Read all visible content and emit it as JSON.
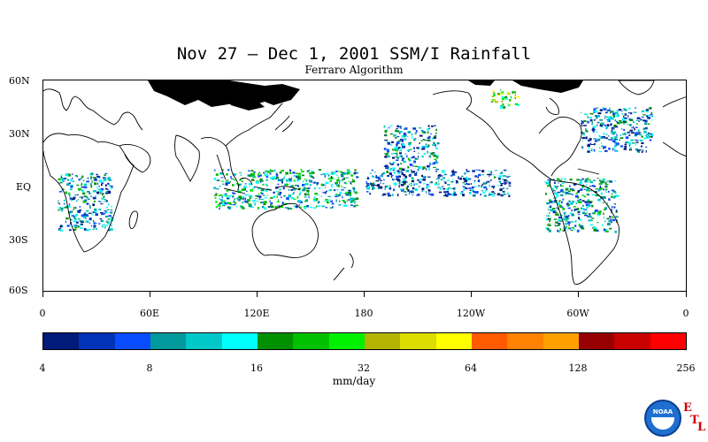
{
  "title": "Nov 27 – Dec 1, 2001 SSM/I Rainfall",
  "subtitle": "Ferraro Algorithm",
  "map": {
    "lat_labels": [
      "60N",
      "30N",
      "EQ",
      "30S",
      "60S"
    ],
    "lon_labels": [
      "0",
      "60E",
      "120E",
      "180",
      "120W",
      "60W",
      "0"
    ],
    "lat_range": [
      -60,
      60
    ],
    "lon_range": [
      0,
      360
    ],
    "no_data_color": "#000000",
    "land_outline_color": "#000000"
  },
  "colorbar": {
    "units": "mm/day",
    "tick_labels": [
      "4",
      "8",
      "16",
      "32",
      "64",
      "128",
      "256"
    ],
    "scale": "log2",
    "colors": [
      "#001b7a",
      "#0033b8",
      "#0a4dff",
      "#00999c",
      "#00c8c8",
      "#00ffff",
      "#009000",
      "#00c000",
      "#00f000",
      "#b4b400",
      "#dcdc00",
      "#ffff00",
      "#ff5a00",
      "#ff8200",
      "#ffa000",
      "#960000",
      "#c80000",
      "#ff0000"
    ]
  },
  "logo": {
    "text": "NOAA",
    "lab_letters": [
      "E",
      "T",
      "L"
    ]
  },
  "chart_data": {
    "type": "heatmap",
    "title": "Nov 27 – Dec 1, 2001 SSM/I Rainfall",
    "subtitle": "Ferraro Algorithm",
    "xlabel": "",
    "ylabel": "",
    "xlim": [
      0,
      360
    ],
    "ylim": [
      -60,
      60
    ],
    "colorbar_label": "mm/day",
    "colorbar_range": [
      4,
      256
    ],
    "rain_regions": [
      {
        "lon": [
          8,
          38
        ],
        "lat": [
          -25,
          8
        ],
        "value": 10
      },
      {
        "lon": [
          95,
          175
        ],
        "lat": [
          -12,
          10
        ],
        "value": 14
      },
      {
        "lon": [
          180,
          260
        ],
        "lat": [
          -5,
          10
        ],
        "value": 8
      },
      {
        "lon": [
          190,
          220
        ],
        "lat": [
          10,
          35
        ],
        "value": 10
      },
      {
        "lon": [
          280,
          320
        ],
        "lat": [
          -25,
          5
        ],
        "value": 12
      },
      {
        "lon": [
          300,
          340
        ],
        "lat": [
          20,
          45
        ],
        "value": 9
      },
      {
        "lon": [
          250,
          265
        ],
        "lat": [
          45,
          55
        ],
        "value": 30
      }
    ]
  }
}
